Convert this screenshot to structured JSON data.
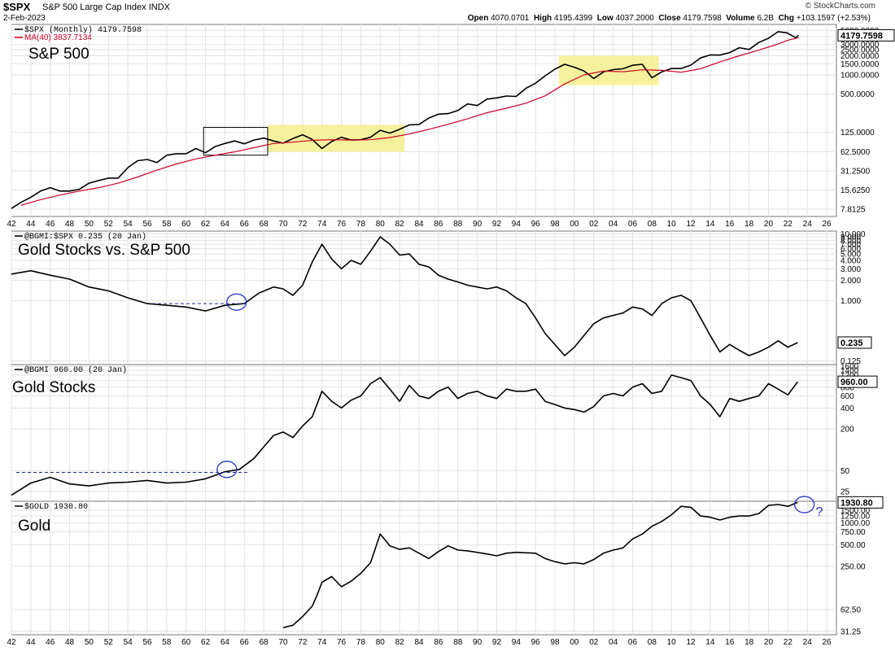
{
  "header": {
    "symbol": "$SPX",
    "name": "S&P 500 Large Cap Index",
    "exchange": "INDX",
    "date": "2-Feb-2023",
    "open_label": "Open",
    "open": "4070.0701",
    "high_label": "High",
    "high": "4195.4399",
    "low_label": "Low",
    "low": "4037.2000",
    "close_label": "Close",
    "close": "4179.7598",
    "volume_label": "Volume",
    "volume": "6.2B",
    "chg_label": "Chg",
    "chg": "+103.1597 (+2.53%)",
    "brand": "© StockCharts.com"
  },
  "colors": {
    "price": "#000000",
    "ma": "#cc0022",
    "highlight": "#f5ee8c",
    "circle": "#2233cc",
    "dash": "#1a2a8c",
    "grid": "#e2e2e2",
    "border": "#777777"
  },
  "x_axis": {
    "start_year": 1942,
    "end_year": 2027,
    "tick_labels": [
      "42",
      "44",
      "46",
      "48",
      "50",
      "52",
      "54",
      "56",
      "58",
      "60",
      "62",
      "64",
      "66",
      "68",
      "70",
      "72",
      "74",
      "76",
      "78",
      "80",
      "82",
      "84",
      "86",
      "88",
      "90",
      "92",
      "94",
      "96",
      "98",
      "00",
      "02",
      "04",
      "06",
      "08",
      "10",
      "12",
      "14",
      "16",
      "18",
      "20",
      "22",
      "24",
      "26"
    ]
  },
  "chart_data": [
    {
      "id": "spx",
      "type": "line",
      "title": "S&P 500",
      "legend_price": "$SPX (Monthly) 4179.7598",
      "legend_ma": "MA(40) 3837.7134",
      "last_value_label": "4179.7598",
      "y_scale": "log",
      "ylim": [
        6,
        6200
      ],
      "y_ticks": [
        "5000.0000",
        "4000.0000",
        "3000.0000",
        "2500.0000",
        "2000.0000",
        "1500.0000",
        "1000.0000",
        "500.0000",
        "125.0000",
        "62.5000",
        "31.2500",
        "15.6250",
        "7.8125"
      ],
      "series": [
        {
          "name": "$SPX",
          "x": [
            1942,
            1943,
            1944,
            1945,
            1946,
            1947,
            1948,
            1949,
            1950,
            1951,
            1952,
            1953,
            1954,
            1955,
            1956,
            1957,
            1958,
            1959,
            1960,
            1961,
            1962,
            1963,
            1964,
            1965,
            1966,
            1967,
            1968,
            1969,
            1970,
            1971,
            1972,
            1973,
            1974,
            1975,
            1976,
            1977,
            1978,
            1979,
            1980,
            1981,
            1982,
            1983,
            1984,
            1985,
            1986,
            1987,
            1988,
            1989,
            1990,
            1991,
            1992,
            1993,
            1994,
            1995,
            1996,
            1997,
            1998,
            1999,
            2000,
            2001,
            2002,
            2003,
            2004,
            2005,
            2006,
            2007,
            2008,
            2009,
            2010,
            2011,
            2012,
            2013,
            2014,
            2015,
            2016,
            2017,
            2018,
            2019,
            2020,
            2021,
            2021.9,
            2022.8,
            2023.1
          ],
          "values": [
            8,
            10,
            12,
            15,
            17,
            15,
            15,
            16,
            20,
            22,
            24,
            24,
            35,
            45,
            47,
            42,
            55,
            58,
            58,
            70,
            60,
            75,
            84,
            92,
            83,
            95,
            102,
            92,
            85,
            100,
            115,
            97,
            70,
            90,
            105,
            95,
            96,
            105,
            135,
            122,
            140,
            164,
            167,
            210,
            242,
            247,
            277,
            350,
            330,
            417,
            435,
            466,
            459,
            615,
            740,
            970,
            1229,
            1469,
            1320,
            1148,
            880,
            1112,
            1212,
            1248,
            1418,
            1468,
            900,
            1115,
            1258,
            1258,
            1426,
            1848,
            2059,
            2044,
            2239,
            2673,
            2507,
            3231,
            3756,
            4766,
            4580,
            3840,
            4180
          ]
        },
        {
          "name": "MA(40)",
          "x": [
            1943,
            1945,
            1947,
            1949,
            1951,
            1953,
            1955,
            1957,
            1959,
            1961,
            1963,
            1965,
            1967,
            1969,
            1971,
            1973,
            1975,
            1977,
            1979,
            1981,
            1983,
            1985,
            1987,
            1989,
            1991,
            1993,
            1995,
            1997,
            1999,
            2001,
            2003,
            2005,
            2007,
            2009,
            2011,
            2013,
            2015,
            2017,
            2019,
            2021,
            2022,
            2023.1
          ],
          "values": [
            9,
            11,
            13,
            15,
            17,
            20,
            25,
            32,
            40,
            48,
            55,
            62,
            72,
            84,
            88,
            94,
            96,
            95,
            96,
            104,
            118,
            140,
            168,
            205,
            255,
            300,
            360,
            470,
            720,
            1000,
            1150,
            1120,
            1200,
            1180,
            1100,
            1250,
            1600,
            2000,
            2450,
            3050,
            3500,
            3838
          ]
        }
      ],
      "highlights": [
        {
          "x0": 1968.4,
          "x1": 1982.5,
          "y0": 62,
          "y1": 165
        },
        {
          "x0": 1998.4,
          "x1": 2008.7,
          "y0": 690,
          "y1": 2000
        }
      ],
      "boxes": [
        {
          "x0": 1961.8,
          "x1": 1968.4,
          "y0": 55,
          "y1": 150
        }
      ]
    },
    {
      "id": "ratio",
      "type": "line",
      "title": "Gold Stocks vs. S&P 500",
      "legend_price": "@BGMI:$SPX 0.235 (20 Jan)",
      "last_value_label": "0.235",
      "y_scale": "log",
      "ylim": [
        0.11,
        11
      ],
      "y_ticks": [
        "10.000",
        "9.000",
        "8.000",
        "7.000",
        "6.000",
        "5.000",
        "4.000",
        "3.000",
        "2.000",
        "1.000",
        "0.125"
      ],
      "series": [
        {
          "name": "@BGMI:$SPX",
          "x": [
            1942,
            1944,
            1946,
            1948,
            1950,
            1952,
            1954,
            1956,
            1958,
            1960,
            1962,
            1964,
            1966,
            1967.5,
            1969,
            1970,
            1971,
            1972,
            1973,
            1974,
            1975,
            1976,
            1977,
            1978,
            1979,
            1980,
            1981,
            1982,
            1983,
            1984,
            1985,
            1986,
            1987,
            1988,
            1989,
            1990,
            1991,
            1992,
            1993,
            1994,
            1995,
            1996,
            1997,
            1998,
            1999,
            2000,
            2001,
            2002,
            2003,
            2004,
            2005,
            2006,
            2007,
            2008,
            2009,
            2010,
            2011,
            2012,
            2013,
            2014,
            2015,
            2016,
            2017,
            2018,
            2019,
            2020,
            2021,
            2022,
            2023
          ],
          "values": [
            2.5,
            2.8,
            2.4,
            2.1,
            1.6,
            1.4,
            1.1,
            0.9,
            0.85,
            0.8,
            0.7,
            0.85,
            0.9,
            1.3,
            1.6,
            1.5,
            1.2,
            1.7,
            3.8,
            7.0,
            4.2,
            3.0,
            4.0,
            3.5,
            5.5,
            9.0,
            7.0,
            4.8,
            5.0,
            3.5,
            3.2,
            2.4,
            2.1,
            1.9,
            1.7,
            1.6,
            1.5,
            1.6,
            1.4,
            1.1,
            0.9,
            0.55,
            0.32,
            0.22,
            0.15,
            0.2,
            0.3,
            0.45,
            0.55,
            0.6,
            0.65,
            0.8,
            0.75,
            0.6,
            0.9,
            1.1,
            1.2,
            1.0,
            0.55,
            0.3,
            0.17,
            0.22,
            0.18,
            0.15,
            0.17,
            0.2,
            0.25,
            0.2,
            0.235
          ]
        }
      ],
      "dashed_levels": [
        {
          "x0": 1956.5,
          "x1": 1966.5,
          "y": 0.9
        }
      ],
      "circles": [
        {
          "x": 1965.2,
          "y": 0.95,
          "rx": 1.3,
          "ry": 0.17
        }
      ]
    },
    {
      "id": "bgmi",
      "type": "line",
      "title": "Gold Stocks",
      "legend_price": "@BGMI 960.00 (20 Jan)",
      "last_value_label": "960.00",
      "y_scale": "log",
      "ylim": [
        18,
        1700
      ],
      "y_ticks": [
        "1600",
        "1400",
        "1200",
        "1000",
        "800",
        "600",
        "400",
        "200",
        "50",
        "25"
      ],
      "series": [
        {
          "name": "@BGMI",
          "x": [
            1942,
            1944,
            1946,
            1948,
            1950,
            1952,
            1954,
            1956,
            1958,
            1960,
            1962,
            1964,
            1965.5,
            1967,
            1968,
            1969,
            1970,
            1971,
            1972,
            1973,
            1974,
            1975,
            1976,
            1977,
            1978,
            1979,
            1980,
            1981,
            1982,
            1983,
            1984,
            1985,
            1986,
            1987,
            1988,
            1989,
            1990,
            1991,
            1992,
            1993,
            1994,
            1995,
            1996,
            1997,
            1998,
            1999,
            2000,
            2001,
            2002,
            2003,
            2004,
            2005,
            2006,
            2007,
            2008,
            2009,
            2010,
            2011,
            2012,
            2013,
            2014,
            2015,
            2016,
            2017,
            2018,
            2019,
            2020,
            2021,
            2022,
            2023
          ],
          "values": [
            22,
            33,
            40,
            32,
            30,
            33,
            34,
            36,
            33,
            34,
            38,
            48,
            52,
            75,
            110,
            160,
            180,
            150,
            220,
            300,
            700,
            500,
            400,
            520,
            600,
            900,
            1100,
            750,
            500,
            850,
            600,
            550,
            700,
            800,
            550,
            650,
            700,
            600,
            550,
            750,
            700,
            700,
            750,
            500,
            450,
            400,
            380,
            350,
            420,
            600,
            650,
            600,
            800,
            900,
            650,
            700,
            1200,
            1100,
            1000,
            600,
            450,
            300,
            550,
            500,
            550,
            600,
            900,
            750,
            620,
            960
          ]
        }
      ],
      "dashed_levels": [
        {
          "x0": 1942.5,
          "x1": 1966.5,
          "y": 47
        }
      ],
      "circles": [
        {
          "x": 1964.2,
          "y": 52,
          "rx": 1.2,
          "ry": 0.09
        }
      ]
    },
    {
      "id": "gold",
      "type": "line",
      "title": "Gold",
      "legend_price": "$GOLD 1930.80",
      "last_value_label": "1930.80",
      "annotation": "?",
      "y_scale": "log",
      "ylim": [
        28,
        2000
      ],
      "y_ticks": [
        "1500.00",
        "1250.00",
        "1000.00",
        "750.00",
        "500.00",
        "250.00",
        "62.50",
        "31.25"
      ],
      "series": [
        {
          "name": "$GOLD",
          "x": [
            1970,
            1971,
            1972,
            1973,
            1973.5,
            1974,
            1975,
            1976,
            1977,
            1978,
            1979,
            1980,
            1981,
            1982,
            1983,
            1984,
            1985,
            1986,
            1987,
            1988,
            1989,
            1990,
            1991,
            1992,
            1993,
            1994,
            1995,
            1996,
            1997,
            1998,
            1999,
            2000,
            2001,
            2002,
            2003,
            2004,
            2005,
            2006,
            2007,
            2008,
            2009,
            2010,
            2011,
            2012,
            2013,
            2014,
            2015,
            2016,
            2017,
            2018,
            2019,
            2020,
            2021,
            2022,
            2023
          ],
          "values": [
            35,
            38,
            50,
            70,
            100,
            150,
            180,
            130,
            155,
            200,
            280,
            700,
            480,
            430,
            450,
            380,
            320,
            400,
            480,
            420,
            410,
            390,
            370,
            350,
            380,
            390,
            385,
            380,
            320,
            290,
            270,
            280,
            270,
            310,
            380,
            420,
            450,
            600,
            700,
            900,
            1050,
            1300,
            1700,
            1650,
            1250,
            1200,
            1100,
            1200,
            1250,
            1250,
            1350,
            1750,
            1800,
            1700,
            1930
          ]
        }
      ],
      "circles": [
        {
          "x": 2023.7,
          "y": 1800,
          "rx": 1.2,
          "ry": 0.09
        }
      ]
    }
  ]
}
